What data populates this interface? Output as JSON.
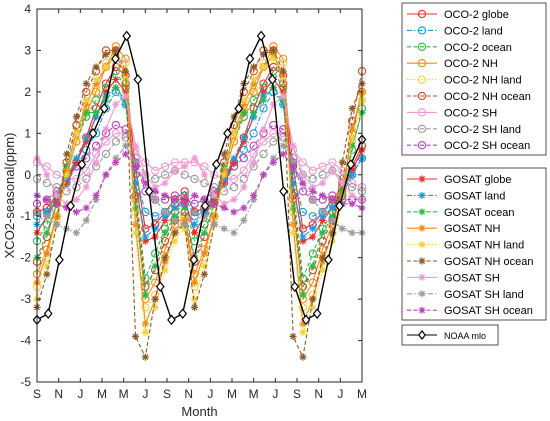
{
  "chart_data": {
    "type": "line",
    "xlabel": "Month",
    "ylabel": "XCO2-seasonal(ppm)",
    "ylim": [
      -5,
      4
    ],
    "yticks": [
      -5,
      -4,
      -3,
      -2,
      -1,
      0,
      1,
      2,
      3,
      4
    ],
    "xtick_labels": [
      "S",
      "N",
      "J",
      "M",
      "M",
      "J",
      "S",
      "N",
      "J",
      "M",
      "M",
      "J",
      "S",
      "N",
      "J",
      "M"
    ],
    "x_index_range": [
      0,
      30
    ],
    "grid": false,
    "legend_placement": "outside-right",
    "legends": [
      {
        "group": "oco2",
        "entries": [
          "OCO-2 globe",
          "OCO-2 land",
          "OCO-2 ocean",
          "OCO-2 NH",
          "OCO-2 NH land",
          "OCO-2 NH ocean",
          "OCO-2 SH",
          "OCO-2 SH land",
          "OCO-2 SH ocean"
        ]
      },
      {
        "group": "gosat",
        "entries": [
          "GOSAT globe",
          "GOSAT land",
          "GOSAT ocean",
          "GOSAT NH",
          "GOSAT NH land",
          "GOSAT NH ocean",
          "GOSAT SH",
          "GOSAT SH land",
          "GOSAT SH ocean"
        ]
      },
      {
        "group": "noaa",
        "entries": [
          "NOAA mlo"
        ]
      }
    ],
    "series": [
      {
        "name": "OCO-2 globe",
        "group": "oco2",
        "color": "#e8302a",
        "dash": "solid",
        "marker": "circle",
        "values": [
          -0.9,
          -0.8,
          -0.5,
          -0.1,
          0.3,
          0.9,
          1.6,
          2.2,
          2.6,
          2.4,
          0.2,
          -1.3,
          -1.2,
          -0.9,
          -0.6,
          -0.4,
          -0.9,
          -0.8,
          -0.5,
          -0.1,
          0.3,
          0.9,
          1.6,
          2.2,
          2.6,
          2.4,
          0.2,
          -1.3,
          -1.2,
          -0.9,
          -0.6,
          -0.3,
          0.2,
          0.7
        ]
      },
      {
        "name": "OCO-2 land",
        "group": "oco2",
        "color": "#1f9ad6",
        "dash": "dashdot",
        "marker": "circle",
        "values": [
          -1.0,
          -0.9,
          -0.6,
          -0.2,
          0.2,
          0.6,
          1.0,
          1.6,
          2.0,
          1.7,
          0.0,
          -0.9,
          -1.0,
          -0.9,
          -0.7,
          -0.5,
          -1.0,
          -0.9,
          -0.6,
          -0.2,
          0.2,
          0.6,
          1.0,
          1.6,
          2.0,
          1.7,
          0.0,
          -0.9,
          -1.0,
          -0.9,
          -0.7,
          -0.5,
          0.0,
          0.4
        ]
      },
      {
        "name": "OCO-2 ocean",
        "group": "oco2",
        "color": "#2cb84a",
        "dash": "dashed",
        "marker": "circle",
        "values": [
          -1.6,
          -1.2,
          -0.6,
          0.1,
          0.8,
          1.4,
          1.8,
          2.1,
          2.5,
          2.1,
          -0.3,
          -2.5,
          -1.9,
          -1.3,
          -0.9,
          -0.7,
          -1.6,
          -1.2,
          -0.6,
          0.1,
          0.8,
          1.4,
          1.8,
          2.1,
          2.5,
          2.1,
          -0.3,
          -2.5,
          -1.9,
          -1.3,
          -0.9,
          -0.5,
          0.6,
          1.6
        ]
      },
      {
        "name": "OCO-2 NH",
        "group": "oco2",
        "color": "#f08a1a",
        "dash": "solid",
        "marker": "circle",
        "values": [
          -2.4,
          -1.8,
          -1.0,
          0.0,
          0.8,
          1.5,
          2.0,
          2.6,
          3.1,
          2.8,
          -0.6,
          -3.0,
          -2.6,
          -1.8,
          -1.2,
          -1.0,
          -2.4,
          -1.8,
          -1.0,
          0.0,
          0.8,
          1.5,
          2.0,
          2.6,
          3.1,
          2.8,
          -0.6,
          -3.0,
          -2.6,
          -1.8,
          -1.2,
          -0.4,
          1.0,
          2.0
        ]
      },
      {
        "name": "OCO-2 NH land",
        "group": "oco2",
        "color": "#f2d23a",
        "dash": "dotted",
        "marker": "circle",
        "values": [
          -2.7,
          -2.0,
          -1.1,
          0.0,
          0.9,
          1.6,
          2.1,
          2.7,
          3.0,
          2.7,
          -0.9,
          -3.2,
          -2.9,
          -2.0,
          -1.4,
          -1.1,
          -2.7,
          -2.0,
          -1.1,
          0.0,
          0.9,
          1.6,
          2.1,
          2.7,
          3.0,
          2.7,
          -0.9,
          -3.2,
          -2.9,
          -2.0,
          -1.4,
          -0.6,
          0.8,
          1.8
        ]
      },
      {
        "name": "OCO-2 NH ocean",
        "group": "oco2",
        "color": "#c24a1f",
        "dash": "dashed",
        "marker": "circle",
        "values": [
          -2.1,
          -1.5,
          -0.7,
          0.3,
          1.2,
          2.0,
          2.5,
          3.0,
          3.0,
          2.2,
          -0.5,
          -2.7,
          -2.3,
          -1.6,
          -1.1,
          -0.9,
          -2.1,
          -1.5,
          -0.7,
          0.3,
          1.2,
          2.0,
          2.5,
          3.0,
          3.0,
          2.2,
          -0.5,
          -2.7,
          -2.3,
          -1.6,
          -1.1,
          -0.2,
          1.3,
          2.5
        ]
      },
      {
        "name": "OCO-2 SH",
        "group": "oco2",
        "color": "#f09ad2",
        "dash": "solid",
        "marker": "circle",
        "values": [
          0.3,
          0.2,
          0.0,
          -0.1,
          -0.1,
          0.1,
          0.5,
          0.8,
          1.0,
          1.0,
          0.6,
          0.3,
          0.1,
          0.2,
          0.3,
          0.3,
          0.3,
          0.2,
          0.0,
          -0.1,
          -0.1,
          0.1,
          0.5,
          0.8,
          1.0,
          1.0,
          0.6,
          0.3,
          0.1,
          0.2,
          0.3,
          0.1,
          -0.2,
          -0.3
        ]
      },
      {
        "name": "OCO-2 SH land",
        "group": "oco2",
        "color": "#9a9a9a",
        "dash": "dashed",
        "marker": "circle",
        "values": [
          -0.1,
          -0.2,
          -0.3,
          -0.4,
          -0.3,
          -0.1,
          0.2,
          0.5,
          0.8,
          0.9,
          0.4,
          0.0,
          -0.1,
          0.0,
          0.1,
          0.0,
          -0.1,
          -0.2,
          -0.3,
          -0.4,
          -0.3,
          -0.1,
          0.2,
          0.5,
          0.8,
          0.9,
          0.4,
          0.0,
          -0.1,
          0.0,
          0.1,
          -0.1,
          -0.3,
          -0.4
        ]
      },
      {
        "name": "OCO-2 SH ocean",
        "group": "oco2",
        "color": "#b844b8",
        "dash": "dashed",
        "marker": "circle",
        "values": [
          -0.7,
          -0.6,
          -0.4,
          -0.1,
          0.2,
          0.4,
          0.7,
          1.0,
          1.2,
          1.1,
          0.3,
          -0.4,
          -0.6,
          -0.6,
          -0.5,
          -0.6,
          -0.7,
          -0.6,
          -0.4,
          -0.1,
          0.2,
          0.4,
          0.7,
          1.0,
          1.2,
          1.1,
          0.3,
          -0.4,
          -0.6,
          -0.6,
          -0.5,
          -0.6,
          -0.6,
          -0.6
        ]
      },
      {
        "name": "GOSAT globe",
        "group": "gosat",
        "color": "#e8302a",
        "dash": "solid",
        "marker": "star",
        "values": [
          -1.4,
          -1.0,
          -0.6,
          -0.2,
          0.3,
          0.8,
          1.4,
          2.0,
          2.3,
          2.0,
          -0.2,
          -1.6,
          -1.5,
          -1.1,
          -0.8,
          -0.6,
          -1.4,
          -1.0,
          -0.6,
          -0.2,
          0.3,
          0.8,
          1.4,
          2.0,
          2.3,
          2.0,
          -0.2,
          -1.6,
          -1.5,
          -1.1,
          -0.8,
          -0.4,
          0.1,
          0.6
        ]
      },
      {
        "name": "GOSAT land",
        "group": "gosat",
        "color": "#1f9ad6",
        "dash": "dashdot",
        "marker": "star",
        "values": [
          -1.2,
          -0.9,
          -0.5,
          -0.1,
          0.4,
          0.9,
          1.4,
          1.9,
          2.1,
          1.7,
          -0.2,
          -1.5,
          -1.3,
          -1.0,
          -0.8,
          -0.7,
          -1.2,
          -0.9,
          -0.5,
          -0.1,
          0.4,
          0.9,
          1.4,
          1.9,
          2.1,
          1.7,
          -0.2,
          -1.5,
          -1.3,
          -1.0,
          -0.8,
          -0.5,
          0.0,
          0.4
        ]
      },
      {
        "name": "GOSAT ocean",
        "group": "gosat",
        "color": "#2cb84a",
        "dash": "dashed",
        "marker": "star",
        "values": [
          -2.0,
          -1.4,
          -0.7,
          0.2,
          1.0,
          1.5,
          1.5,
          1.8,
          2.1,
          1.8,
          -0.8,
          -2.9,
          -2.2,
          -1.4,
          -1.0,
          -0.8,
          -2.0,
          -1.4,
          -0.7,
          0.2,
          1.0,
          1.5,
          1.5,
          1.8,
          2.1,
          1.8,
          -0.8,
          -2.9,
          -2.2,
          -1.4,
          -1.0,
          -0.4,
          0.7,
          1.5
        ]
      },
      {
        "name": "GOSAT NH",
        "group": "gosat",
        "color": "#f08a1a",
        "dash": "solid",
        "marker": "star",
        "values": [
          -2.6,
          -1.9,
          -1.0,
          0.1,
          1.0,
          1.7,
          2.2,
          2.6,
          2.9,
          2.4,
          -1.2,
          -3.6,
          -3.0,
          -2.1,
          -1.4,
          -1.1,
          -2.6,
          -1.9,
          -1.0,
          0.1,
          1.0,
          1.7,
          2.2,
          2.6,
          2.9,
          2.4,
          -1.2,
          -3.6,
          -3.0,
          -2.1,
          -1.4,
          -0.5,
          1.1,
          2.0
        ]
      },
      {
        "name": "GOSAT NH land",
        "group": "gosat",
        "color": "#f2d23a",
        "dash": "dotted",
        "marker": "star",
        "values": [
          -3.0,
          -2.2,
          -1.2,
          0.0,
          1.0,
          1.8,
          2.3,
          2.6,
          2.8,
          2.3,
          -1.4,
          -3.8,
          -3.2,
          -2.3,
          -1.6,
          -1.3,
          -3.0,
          -2.2,
          -1.2,
          0.0,
          1.0,
          1.8,
          2.3,
          2.6,
          2.8,
          2.3,
          -1.4,
          -3.8,
          -3.2,
          -2.3,
          -1.6,
          -0.7,
          0.9,
          1.8
        ]
      },
      {
        "name": "GOSAT NH ocean",
        "group": "gosat",
        "color": "#8a5a2a",
        "dash": "dashed",
        "marker": "star",
        "values": [
          -3.2,
          -2.4,
          -1.2,
          0.5,
          1.4,
          2.2,
          2.6,
          2.9,
          3.0,
          2.5,
          -3.9,
          -4.4,
          -3.0,
          -2.0,
          -1.4,
          -1.2,
          -3.2,
          -2.4,
          -1.2,
          0.5,
          1.4,
          2.2,
          2.6,
          2.9,
          3.0,
          2.5,
          -3.9,
          -4.4,
          -3.0,
          -2.0,
          -1.4,
          0.3,
          1.6,
          2.2
        ]
      },
      {
        "name": "GOSAT SH",
        "group": "gosat",
        "color": "#f09ad2",
        "dash": "solid",
        "marker": "star",
        "values": [
          0.4,
          0.0,
          -0.5,
          -0.7,
          -0.6,
          -0.3,
          0.3,
          1.1,
          1.7,
          1.9,
          0.7,
          0.0,
          -0.3,
          -0.2,
          0.1,
          0.2,
          0.4,
          0.0,
          -0.5,
          -0.7,
          -0.6,
          -0.3,
          0.3,
          1.1,
          1.7,
          1.9,
          0.7,
          0.0,
          -0.3,
          -0.2,
          0.1,
          -0.2,
          -0.5,
          -0.6
        ]
      },
      {
        "name": "GOSAT SH land",
        "group": "gosat",
        "color": "#9a9a9a",
        "dash": "dashdot",
        "marker": "star",
        "values": [
          -0.9,
          -1.0,
          -1.2,
          -1.3,
          -1.4,
          -1.1,
          -0.6,
          0.0,
          0.4,
          0.7,
          0.3,
          -0.2,
          -0.6,
          -0.9,
          -1.1,
          -1.2,
          -0.9,
          -1.0,
          -1.2,
          -1.3,
          -1.4,
          -1.1,
          -0.6,
          0.0,
          0.4,
          0.7,
          0.3,
          -0.2,
          -0.6,
          -0.9,
          -1.1,
          -1.3,
          -1.4,
          -1.4
        ]
      },
      {
        "name": "GOSAT SH ocean",
        "group": "gosat",
        "color": "#b844b8",
        "dash": "dashed",
        "marker": "star",
        "values": [
          -0.5,
          -0.6,
          -0.7,
          -0.8,
          -0.9,
          -0.8,
          -0.5,
          0.0,
          0.3,
          0.5,
          0.2,
          -0.2,
          -0.4,
          -0.5,
          -0.6,
          -0.7,
          -0.5,
          -0.6,
          -0.7,
          -0.8,
          -0.9,
          -0.8,
          -0.5,
          0.0,
          0.3,
          0.5,
          0.2,
          -0.2,
          -0.4,
          -0.5,
          -0.6,
          -0.7,
          -0.7,
          -0.8
        ]
      },
      {
        "name": "NOAA mlo",
        "group": "noaa",
        "color": "#000000",
        "dash": "solid",
        "marker": "diamond",
        "values": [
          -3.5,
          -3.35,
          -2.05,
          -0.75,
          0.25,
          1.0,
          1.6,
          2.8,
          3.35,
          2.3,
          -0.4,
          -2.7,
          -3.5,
          -3.35,
          -2.05,
          -0.75,
          0.25,
          1.0,
          1.6,
          2.8,
          3.35,
          2.3,
          -0.4,
          -2.7,
          -3.5,
          -3.35,
          -2.05,
          -0.75,
          0.25,
          0.85
        ]
      }
    ]
  }
}
